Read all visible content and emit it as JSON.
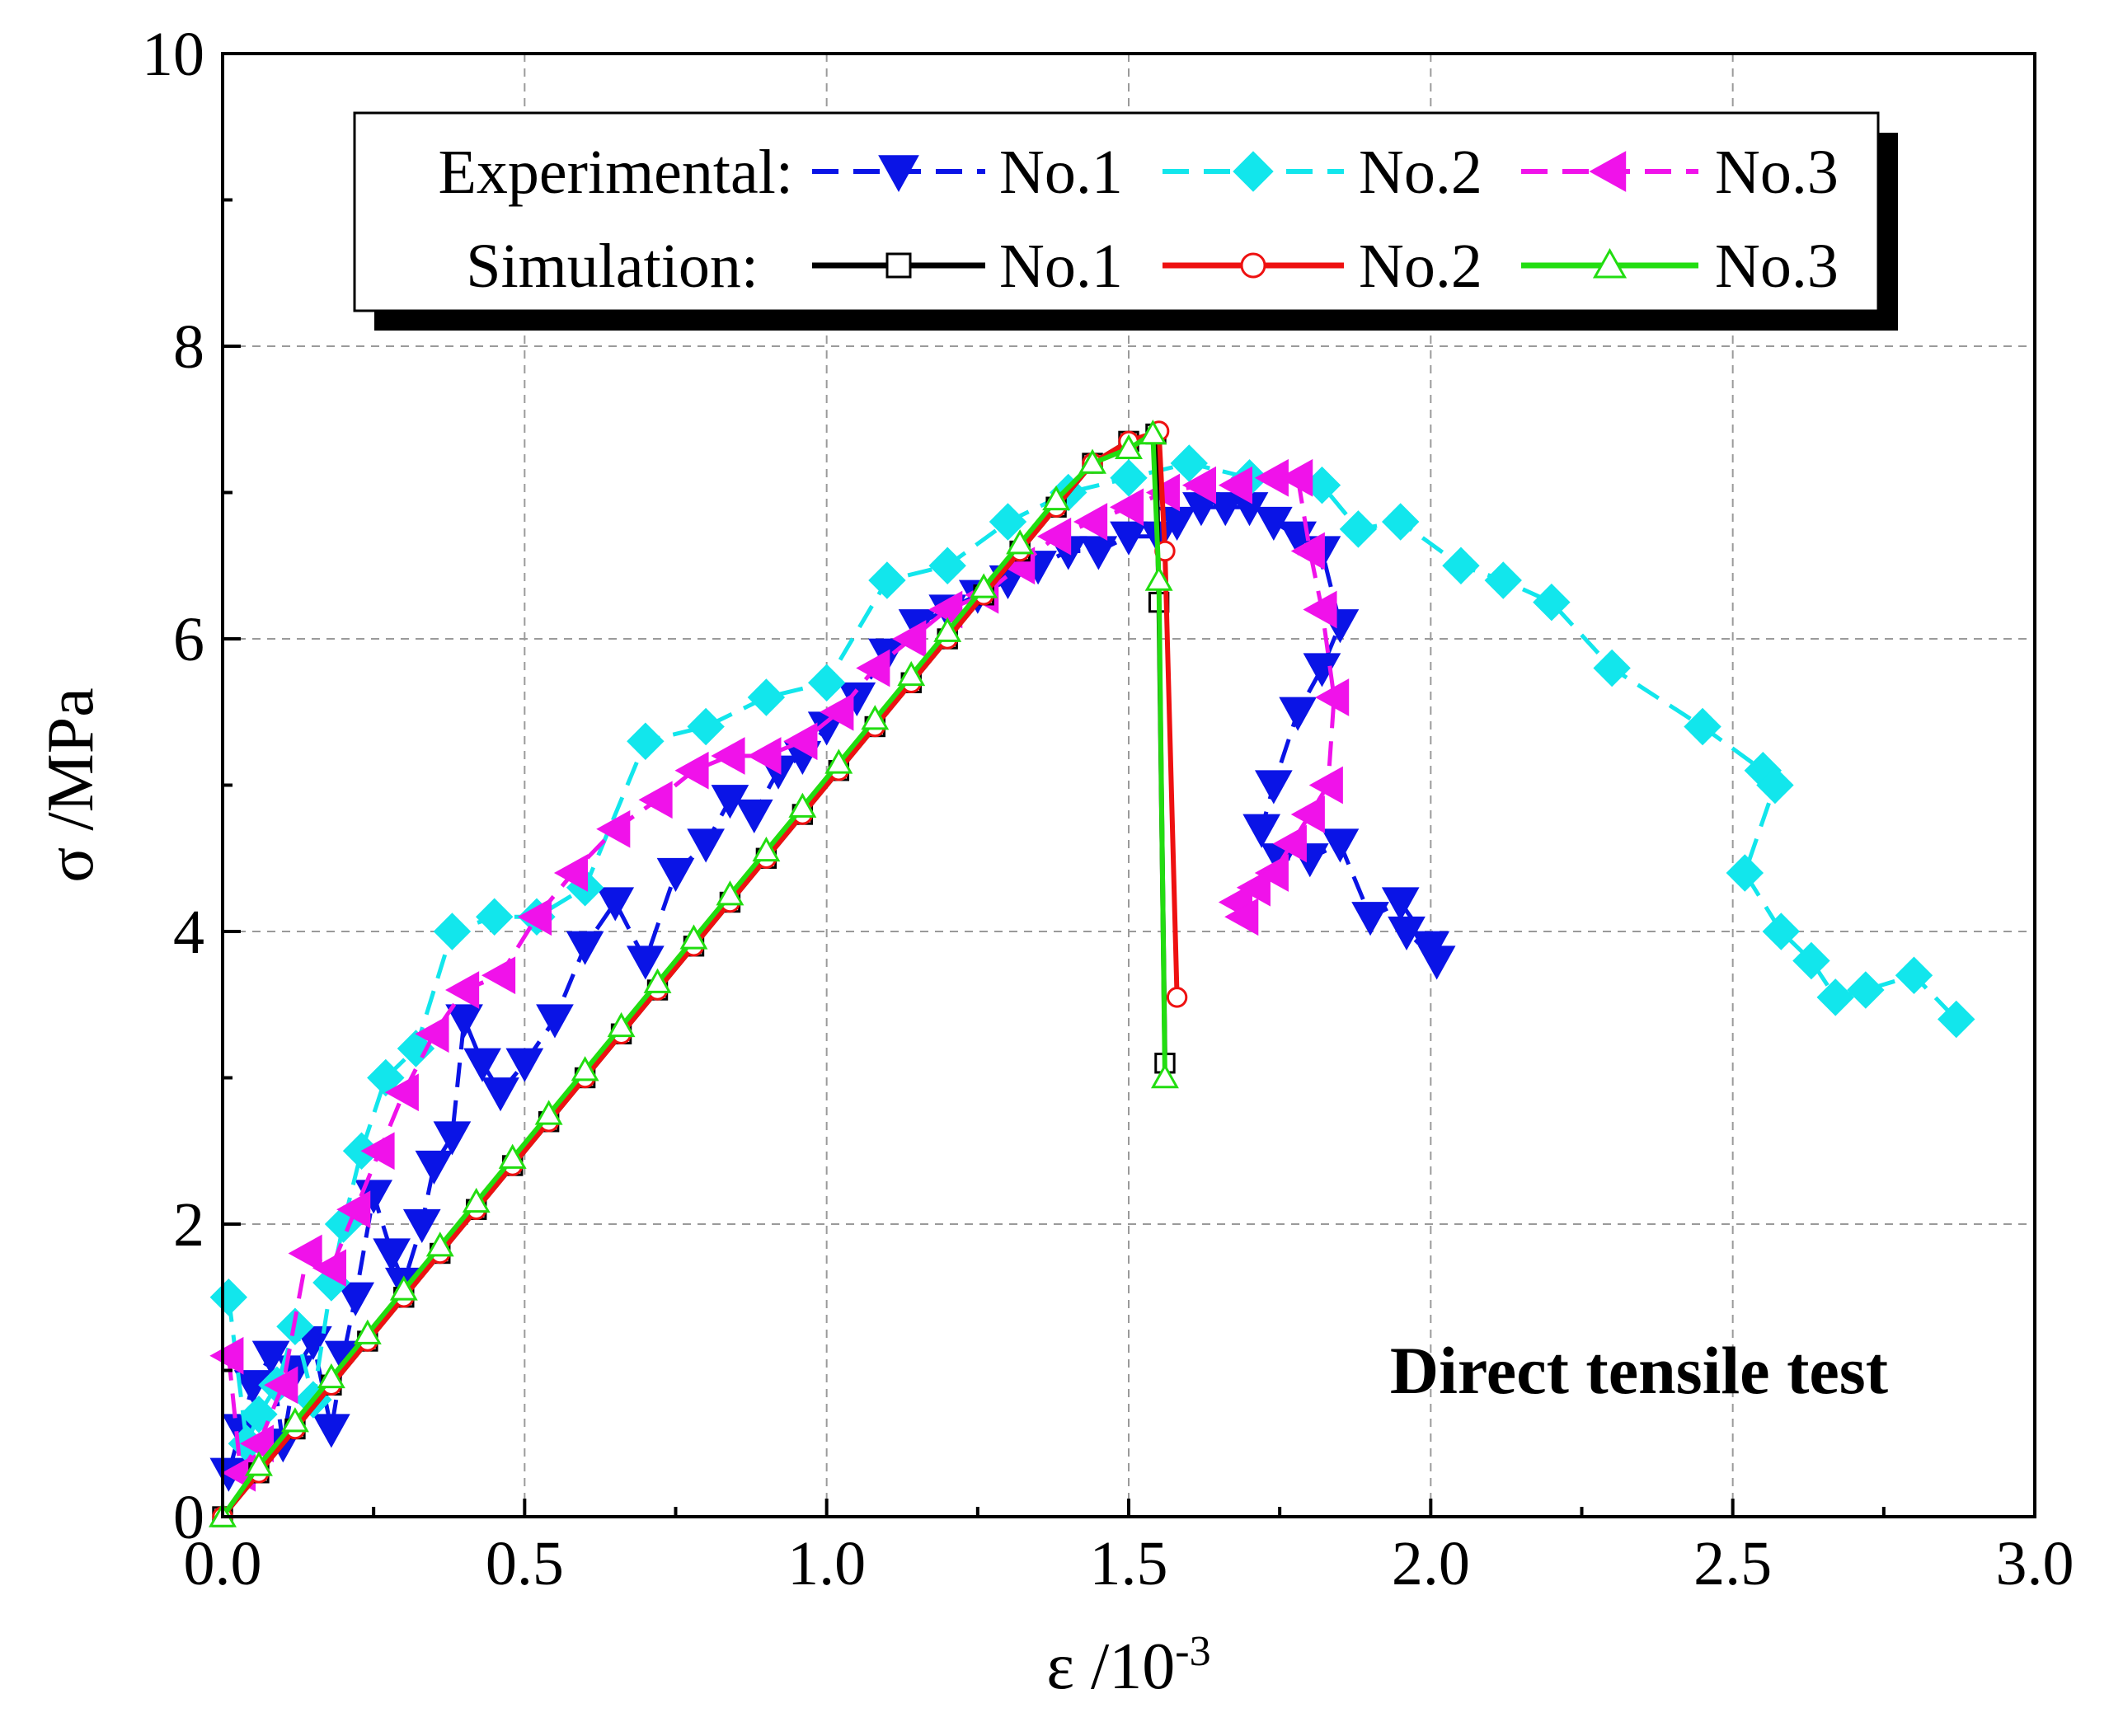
{
  "chart_data": {
    "type": "line",
    "title": "",
    "xlabel": "ε /10",
    "xlabel_superscript": "-3",
    "ylabel": "σ /MPa",
    "xlim": [
      0,
      3
    ],
    "ylim": [
      0,
      10
    ],
    "xticks": [
      "0.0",
      "0.5",
      "1.0",
      "1.5",
      "2.0",
      "2.5",
      "3.0"
    ],
    "yticks": [
      "0",
      "2",
      "4",
      "6",
      "8",
      "10"
    ],
    "grid": true,
    "legend_position": "top-center",
    "legend_groups": [
      {
        "label": "Experimental:",
        "entries": [
          "No.1",
          "No.2",
          "No.3"
        ]
      },
      {
        "label": "Simulation:",
        "entries": [
          "No.1",
          "No.2",
          "No.3"
        ]
      }
    ],
    "annotation": "Direct tensile test",
    "series": [
      {
        "group": "Experimental",
        "name": "No.1",
        "color": "#0a14e6",
        "marker": "triangle-down",
        "dashed": true,
        "x": [
          0.01,
          0.03,
          0.05,
          0.08,
          0.1,
          0.12,
          0.15,
          0.18,
          0.2,
          0.22,
          0.25,
          0.28,
          0.3,
          0.33,
          0.35,
          0.38,
          0.4,
          0.43,
          0.46,
          0.5,
          0.55,
          0.6,
          0.65,
          0.7,
          0.75,
          0.8,
          0.84,
          0.88,
          0.92,
          0.96,
          1.0,
          1.05,
          1.1,
          1.15,
          1.2,
          1.25,
          1.3,
          1.35,
          1.4,
          1.45,
          1.5,
          1.55,
          1.58,
          1.62,
          1.66,
          1.7,
          1.74,
          1.78,
          1.82,
          1.85,
          1.82,
          1.78,
          1.74,
          1.72,
          1.75,
          1.8,
          1.85,
          1.9,
          1.95,
          2.0,
          2.01,
          1.96
        ],
        "y": [
          0.3,
          0.6,
          0.9,
          1.1,
          0.5,
          1.0,
          1.2,
          0.6,
          1.1,
          1.5,
          2.2,
          1.8,
          1.6,
          2.0,
          2.4,
          2.6,
          3.4,
          3.1,
          2.9,
          3.1,
          3.4,
          3.9,
          4.2,
          3.8,
          4.4,
          4.6,
          4.9,
          4.8,
          5.1,
          5.2,
          5.4,
          5.6,
          5.9,
          6.1,
          6.2,
          6.3,
          6.4,
          6.5,
          6.6,
          6.6,
          6.7,
          6.7,
          6.8,
          6.9,
          6.9,
          6.9,
          6.8,
          6.7,
          6.6,
          6.1,
          5.8,
          5.5,
          5.0,
          4.7,
          4.5,
          4.5,
          4.6,
          4.1,
          4.2,
          3.9,
          3.8,
          4.0
        ]
      },
      {
        "group": "Experimental",
        "name": "No.2",
        "color": "#12e6ec",
        "marker": "diamond",
        "dashed": true,
        "x": [
          0.01,
          0.04,
          0.06,
          0.09,
          0.12,
          0.15,
          0.18,
          0.2,
          0.23,
          0.27,
          0.32,
          0.38,
          0.45,
          0.52,
          0.6,
          0.7,
          0.8,
          0.9,
          1.0,
          1.1,
          1.2,
          1.3,
          1.4,
          1.5,
          1.6,
          1.7,
          1.82,
          1.88,
          1.95,
          2.05,
          2.12,
          2.2,
          2.3,
          2.45,
          2.55,
          2.57,
          2.52,
          2.58,
          2.63,
          2.67,
          2.72,
          2.8,
          2.87
        ],
        "y": [
          1.5,
          0.5,
          0.7,
          0.9,
          1.3,
          0.8,
          1.6,
          2.0,
          2.5,
          3.0,
          3.2,
          4.0,
          4.1,
          4.1,
          4.3,
          5.3,
          5.4,
          5.6,
          5.7,
          6.4,
          6.5,
          6.8,
          7.0,
          7.1,
          7.2,
          7.1,
          7.05,
          6.75,
          6.8,
          6.5,
          6.4,
          6.25,
          5.8,
          5.4,
          5.1,
          5.0,
          4.4,
          4.0,
          3.8,
          3.55,
          3.6,
          3.7,
          3.4
        ]
      },
      {
        "group": "Experimental",
        "name": "No.3",
        "color": "#f012ea",
        "marker": "triangle-left",
        "dashed": true,
        "x": [
          0.01,
          0.03,
          0.06,
          0.1,
          0.14,
          0.18,
          0.22,
          0.26,
          0.3,
          0.35,
          0.4,
          0.46,
          0.52,
          0.58,
          0.65,
          0.72,
          0.78,
          0.84,
          0.9,
          0.96,
          1.02,
          1.08,
          1.14,
          1.2,
          1.26,
          1.32,
          1.38,
          1.44,
          1.5,
          1.56,
          1.62,
          1.68,
          1.74,
          1.78,
          1.8,
          1.82,
          1.84,
          1.83,
          1.8,
          1.77,
          1.74,
          1.71,
          1.68,
          1.69
        ],
        "y": [
          1.1,
          0.3,
          0.5,
          0.9,
          1.8,
          1.7,
          2.1,
          2.5,
          2.9,
          3.3,
          3.6,
          3.7,
          4.1,
          4.4,
          4.7,
          4.9,
          5.1,
          5.2,
          5.2,
          5.3,
          5.5,
          5.8,
          6.0,
          6.2,
          6.3,
          6.5,
          6.7,
          6.8,
          6.9,
          7.0,
          7.05,
          7.05,
          7.1,
          7.1,
          6.6,
          6.2,
          5.6,
          5.0,
          4.8,
          4.6,
          4.4,
          4.3,
          4.2,
          4.1
        ]
      },
      {
        "group": "Simulation",
        "name": "No.1",
        "color": "#000000",
        "marker": "square-open",
        "dashed": false,
        "x": [
          0,
          0.06,
          0.12,
          0.18,
          0.24,
          0.3,
          0.36,
          0.42,
          0.48,
          0.54,
          0.6,
          0.66,
          0.72,
          0.78,
          0.84,
          0.9,
          0.96,
          1.02,
          1.08,
          1.14,
          1.2,
          1.26,
          1.32,
          1.38,
          1.44,
          1.5,
          1.545,
          1.55,
          1.56
        ],
        "y": [
          0,
          0.3,
          0.6,
          0.9,
          1.2,
          1.5,
          1.8,
          2.1,
          2.4,
          2.7,
          3.0,
          3.3,
          3.6,
          3.9,
          4.2,
          4.5,
          4.8,
          5.1,
          5.4,
          5.7,
          6.0,
          6.3,
          6.6,
          6.9,
          7.2,
          7.35,
          7.4,
          6.25,
          3.1
        ]
      },
      {
        "group": "Simulation",
        "name": "No.2",
        "color": "#ee1111",
        "marker": "circle-open",
        "dashed": false,
        "x": [
          0,
          0.06,
          0.12,
          0.18,
          0.24,
          0.3,
          0.36,
          0.42,
          0.48,
          0.54,
          0.6,
          0.66,
          0.72,
          0.78,
          0.84,
          0.9,
          0.96,
          1.02,
          1.08,
          1.14,
          1.2,
          1.26,
          1.32,
          1.38,
          1.44,
          1.5,
          1.55,
          1.56,
          1.58
        ],
        "y": [
          0,
          0.3,
          0.6,
          0.9,
          1.2,
          1.5,
          1.8,
          2.1,
          2.4,
          2.7,
          3.0,
          3.3,
          3.6,
          3.9,
          4.2,
          4.5,
          4.8,
          5.1,
          5.4,
          5.7,
          6.0,
          6.3,
          6.6,
          6.9,
          7.2,
          7.35,
          7.42,
          6.6,
          3.55
        ]
      },
      {
        "group": "Simulation",
        "name": "No.3",
        "color": "#22dd11",
        "marker": "triangle-up-open",
        "dashed": false,
        "x": [
          0,
          0.06,
          0.12,
          0.18,
          0.24,
          0.3,
          0.36,
          0.42,
          0.48,
          0.54,
          0.6,
          0.66,
          0.72,
          0.78,
          0.84,
          0.9,
          0.96,
          1.02,
          1.08,
          1.14,
          1.2,
          1.26,
          1.32,
          1.38,
          1.44,
          1.5,
          1.54,
          1.55,
          1.56
        ],
        "y": [
          0,
          0.35,
          0.65,
          0.95,
          1.25,
          1.55,
          1.85,
          2.15,
          2.45,
          2.75,
          3.05,
          3.35,
          3.65,
          3.95,
          4.25,
          4.55,
          4.85,
          5.15,
          5.45,
          5.75,
          6.05,
          6.35,
          6.65,
          6.95,
          7.2,
          7.3,
          7.4,
          6.4,
          3.0
        ]
      }
    ]
  }
}
